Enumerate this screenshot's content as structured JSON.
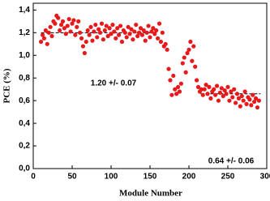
{
  "chart_data": {
    "type": "scatter",
    "x_label": "Module Number",
    "y_label": "PCE (%)",
    "color": "#e8191a",
    "xlim": [
      0,
      300
    ],
    "xticks": [
      0,
      50,
      100,
      150,
      200,
      250,
      300
    ],
    "ylim": [
      0,
      1.46
    ],
    "yticks": [
      {
        "value": 0,
        "label": "0,0"
      },
      {
        "value": 0.2,
        "label": "0,2"
      },
      {
        "value": 0.4,
        "label": "0,4"
      },
      {
        "value": 0.6,
        "label": "0,6"
      },
      {
        "value": 0.8,
        "label": "0,8"
      },
      {
        "value": 1.0,
        "label": "1,0"
      },
      {
        "value": 1.2,
        "label": "1,2"
      },
      {
        "value": 1.4,
        "label": "1,4"
      }
    ],
    "x": [
      10,
      12,
      14,
      16,
      18,
      20,
      22,
      24,
      26,
      28,
      30,
      32,
      34,
      36,
      38,
      40,
      42,
      44,
      46,
      48,
      50,
      52,
      54,
      56,
      58,
      60,
      62,
      64,
      66,
      68,
      70,
      72,
      74,
      76,
      78,
      80,
      82,
      84,
      86,
      88,
      90,
      92,
      94,
      96,
      98,
      100,
      102,
      104,
      106,
      108,
      110,
      112,
      114,
      116,
      118,
      120,
      122,
      124,
      126,
      128,
      130,
      132,
      134,
      136,
      138,
      140,
      142,
      144,
      146,
      148,
      150,
      152,
      154,
      156,
      158,
      160,
      162,
      164,
      166,
      168,
      170,
      172,
      174,
      176,
      178,
      180,
      182,
      184,
      186,
      188,
      190,
      192,
      194,
      196,
      198,
      200,
      202,
      204,
      206,
      208,
      210,
      212,
      214,
      216,
      218,
      220,
      222,
      224,
      226,
      228,
      230,
      232,
      234,
      236,
      238,
      240,
      242,
      244,
      246,
      248,
      250,
      252,
      254,
      256,
      258,
      260,
      262,
      264,
      266,
      268,
      270,
      272,
      274,
      276,
      278,
      280,
      282,
      284,
      286,
      288,
      290
    ],
    "values": [
      1.12,
      1.18,
      1.15,
      1.22,
      1.1,
      1.2,
      1.25,
      1.17,
      1.3,
      1.28,
      1.35,
      1.33,
      1.22,
      1.27,
      1.3,
      1.24,
      1.19,
      1.26,
      1.32,
      1.21,
      1.28,
      1.31,
      1.18,
      1.25,
      1.3,
      1.2,
      1.15,
      1.08,
      1.02,
      1.12,
      1.22,
      1.18,
      1.25,
      1.13,
      1.21,
      1.27,
      1.16,
      1.23,
      1.2,
      1.28,
      1.14,
      1.22,
      1.26,
      1.17,
      1.24,
      1.19,
      1.27,
      1.21,
      1.15,
      1.24,
      1.18,
      1.26,
      1.12,
      1.22,
      1.2,
      1.16,
      1.25,
      1.19,
      1.23,
      1.14,
      1.21,
      1.27,
      1.17,
      1.2,
      1.24,
      1.18,
      1.22,
      1.13,
      1.2,
      1.26,
      1.16,
      1.21,
      1.24,
      1.19,
      1.22,
      1.15,
      1.28,
      1.12,
      1.2,
      1.08,
      1.1,
      1.05,
      0.88,
      0.78,
      0.65,
      0.82,
      0.7,
      0.66,
      0.72,
      0.68,
      0.75,
      0.93,
      0.98,
      0.85,
      1.02,
      1.05,
      1.12,
      0.95,
      1.08,
      0.9,
      0.78,
      0.72,
      0.68,
      0.7,
      0.65,
      0.7,
      0.74,
      0.66,
      0.72,
      0.62,
      0.68,
      0.7,
      0.65,
      0.73,
      0.6,
      0.67,
      0.71,
      0.64,
      0.69,
      0.66,
      0.72,
      0.6,
      0.68,
      0.63,
      0.7,
      0.58,
      0.66,
      0.62,
      0.55,
      0.64,
      0.6,
      0.68,
      0.57,
      0.63,
      0.61,
      0.56,
      0.65,
      0.59,
      0.62,
      0.54,
      0.6
    ],
    "reference_lines": [
      {
        "x": [
          10,
          155
        ],
        "y": 1.2
      },
      {
        "x": [
          215,
          292
        ],
        "y": 0.66
      }
    ],
    "annotations": [
      "1.20 +/- 0.07",
      "0.64 +/- 0.06"
    ]
  }
}
